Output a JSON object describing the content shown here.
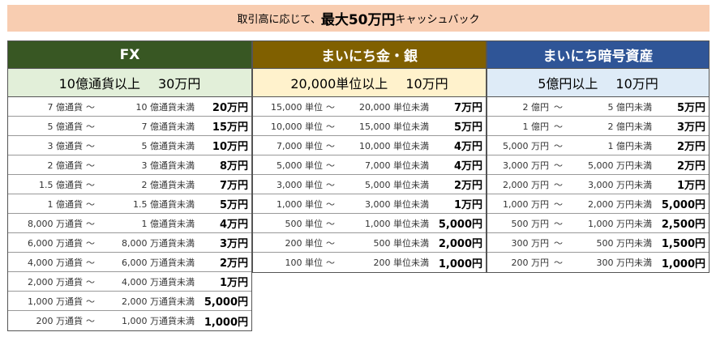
{
  "banner": {
    "prefix": "取引高に応じて、",
    "emphasis": "最大50万円",
    "suffix": "キャッシュバック"
  },
  "columns": [
    {
      "key": "fx",
      "header": "FX",
      "condition": "10億通貨以上",
      "reward": "30万円",
      "rows": [
        {
          "from": "7 億通貨",
          "tilde": "～",
          "to": "10 億通貨未満",
          "amount": "20万円"
        },
        {
          "from": "5 億通貨",
          "tilde": "～",
          "to": "7 億通貨未満",
          "amount": "15万円"
        },
        {
          "from": "3 億通貨",
          "tilde": "～",
          "to": "5 億通貨未満",
          "amount": "10万円"
        },
        {
          "from": "2 億通貨",
          "tilde": "～",
          "to": "3 億通貨未満",
          "amount": "8万円"
        },
        {
          "from": "1.5 億通貨",
          "tilde": "～",
          "to": "2 億通貨未満",
          "amount": "7万円"
        },
        {
          "from": "1 億通貨",
          "tilde": "～",
          "to": "1.5 億通貨未満",
          "amount": "5万円"
        },
        {
          "from": "8,000 万通貨",
          "tilde": "～",
          "to": "1 億通貨未満",
          "amount": "4万円"
        },
        {
          "from": "6,000 万通貨",
          "tilde": "～",
          "to": "8,000 万通貨未満",
          "amount": "3万円"
        },
        {
          "from": "4,000 万通貨",
          "tilde": "～",
          "to": "6,000 万通貨未満",
          "amount": "2万円"
        },
        {
          "from": "2,000 万通貨",
          "tilde": "～",
          "to": "4,000 万通貨未満",
          "amount": "1万円"
        },
        {
          "from": "1,000 万通貨",
          "tilde": "～",
          "to": "2,000 万通貨未満",
          "amount": "5,000円"
        },
        {
          "from": "200 万通貨",
          "tilde": "～",
          "to": "1,000 万通貨未満",
          "amount": "1,000円"
        }
      ]
    },
    {
      "key": "gin",
      "header": "まいにち金・銀",
      "condition": "20,000単位以上",
      "reward": "10万円",
      "rows": [
        {
          "from": "15,000 単位",
          "tilde": "～",
          "to": "20,000 単位未満",
          "amount": "7万円"
        },
        {
          "from": "10,000 単位",
          "tilde": "～",
          "to": "15,000 単位未満",
          "amount": "5万円"
        },
        {
          "from": "7,000 単位",
          "tilde": "～",
          "to": "10,000 単位未満",
          "amount": "4万円"
        },
        {
          "from": "5,000 単位",
          "tilde": "～",
          "to": "7,000 単位未満",
          "amount": "4万円"
        },
        {
          "from": "3,000 単位",
          "tilde": "～",
          "to": "5,000 単位未満",
          "amount": "2万円"
        },
        {
          "from": "1,000 単位",
          "tilde": "～",
          "to": "3,000 単位未満",
          "amount": "1万円"
        },
        {
          "from": "500 単位",
          "tilde": "～",
          "to": "1,000 単位未満",
          "amount": "5,000円"
        },
        {
          "from": "200 単位",
          "tilde": "～",
          "to": "500 単位未満",
          "amount": "2,000円"
        },
        {
          "from": "100 単位",
          "tilde": "～",
          "to": "200 単位未満",
          "amount": "1,000円"
        }
      ]
    },
    {
      "key": "angou",
      "header": "まいにち暗号資産",
      "condition": "5億円以上",
      "reward": "10万円",
      "rows": [
        {
          "from": "2 億円",
          "tilde": "～",
          "to": "5 億円未満",
          "amount": "5万円"
        },
        {
          "from": "1 億円",
          "tilde": "～",
          "to": "2 億円未満",
          "amount": "3万円"
        },
        {
          "from": "5,000 万円",
          "tilde": "～",
          "to": "1 億円未満",
          "amount": "2万円"
        },
        {
          "from": "3,000 万円",
          "tilde": "～",
          "to": "5,000 万円未満",
          "amount": "2万円"
        },
        {
          "from": "2,000 万円",
          "tilde": "～",
          "to": "3,000 万円未満",
          "amount": "1万円"
        },
        {
          "from": "1,000 万円",
          "tilde": "～",
          "to": "2,000 万円未満",
          "amount": "5,000円"
        },
        {
          "from": "500 万円",
          "tilde": "～",
          "to": "1,000 万円未満",
          "amount": "2,500円"
        },
        {
          "from": "300 万円",
          "tilde": "～",
          "to": "500 万円未満",
          "amount": "1,500円"
        },
        {
          "from": "200 万円",
          "tilde": "～",
          "to": "300 万円未満",
          "amount": "1,000円"
        }
      ]
    }
  ],
  "colors": {
    "banner": "#f8cdb1",
    "fx_header": "#385723",
    "gin_header": "#806000",
    "angou_header": "#2f5597",
    "fx_sub": "#e2efd9",
    "gin_sub": "#fff2cc",
    "angou_sub": "#deebf7"
  }
}
